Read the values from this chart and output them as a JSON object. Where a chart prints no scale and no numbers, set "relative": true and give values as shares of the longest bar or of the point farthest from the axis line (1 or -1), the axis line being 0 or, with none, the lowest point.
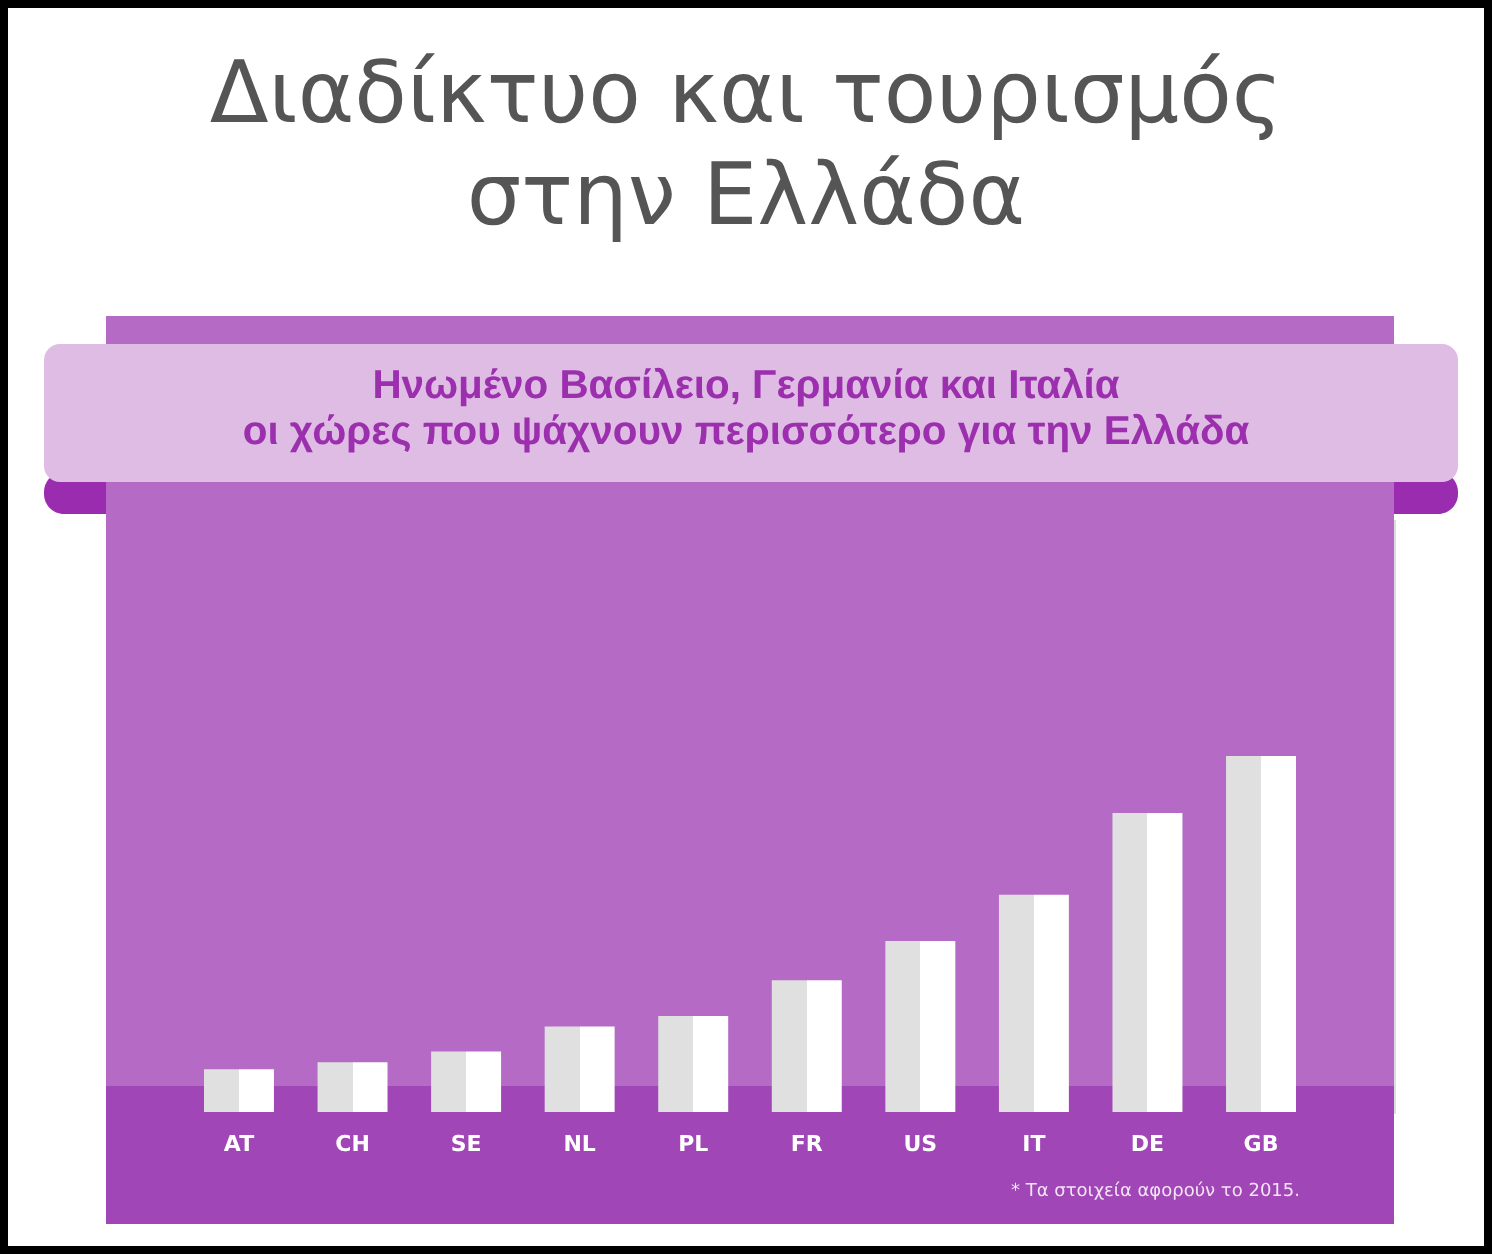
{
  "chart_data": {
    "type": "bar",
    "title": "Διαδίκτυο και τουρισμός\nστην Ελλάδα",
    "subtitle": "Ηνωμένο Βασίλειο, Γερμανία και Ιταλία\nοι χώρες που ψάχνουν περισσότερο για την Ελλάδα",
    "categories": [
      "AT",
      "CH",
      "SE",
      "NL",
      "PL",
      "FR",
      "US",
      "IT",
      "DE",
      "GB"
    ],
    "values": [
      0.12,
      0.14,
      0.17,
      0.24,
      0.27,
      0.37,
      0.48,
      0.61,
      0.84,
      1
    ],
    "color": "#ffffff",
    "relative": true,
    "annotations": [
      "* Τα στοιχεία αφορούν το 2015."
    ]
  }
}
